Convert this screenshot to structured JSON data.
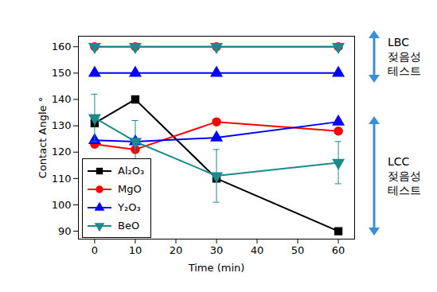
{
  "chart_data": {
    "type": "line",
    "x_label": "Time (min)",
    "y_label": "Contact Angle °",
    "x": [
      0,
      10,
      30,
      60
    ],
    "xlim": [
      -4,
      64
    ],
    "xticks": [
      0,
      10,
      20,
      30,
      40,
      50,
      60
    ],
    "ylim": [
      87,
      164
    ],
    "yticks": [
      90,
      100,
      110,
      120,
      130,
      140,
      150,
      160
    ],
    "legend": "lower left",
    "series": [
      {
        "name": "Al₂O₃",
        "color": "#000000",
        "marker": "square",
        "values": [
          131,
          140,
          110,
          90
        ]
      },
      {
        "name": "MgO",
        "color": "#ff0000",
        "marker": "circle",
        "values": [
          123,
          121,
          131.5,
          128
        ]
      },
      {
        "name": "Y₂O₃",
        "color": "#0000ff",
        "marker": "triangle",
        "values": [
          124.5,
          124,
          125.5,
          131.5
        ]
      },
      {
        "name": "BeO",
        "color": "#1b8a8a",
        "marker": "triangle-down",
        "values": [
          133,
          124,
          111,
          116
        ],
        "errors": [
          9,
          8,
          10,
          8
        ]
      },
      {
        "name": "MgO",
        "color": "#ff0000",
        "marker": "circle",
        "values": [
          160,
          160,
          160,
          160
        ]
      },
      {
        "name": "Y₂O₃",
        "color": "#0000ff",
        "marker": "triangle",
        "values": [
          150,
          150,
          150,
          150
        ]
      },
      {
        "name": "BeO",
        "color": "#1b8a8a",
        "marker": "triangle-down",
        "values": [
          160,
          160,
          160,
          160
        ]
      }
    ],
    "annotations": [
      "LBC 젖음성 테스트",
      "LCC 젖음성 테스트"
    ]
  }
}
